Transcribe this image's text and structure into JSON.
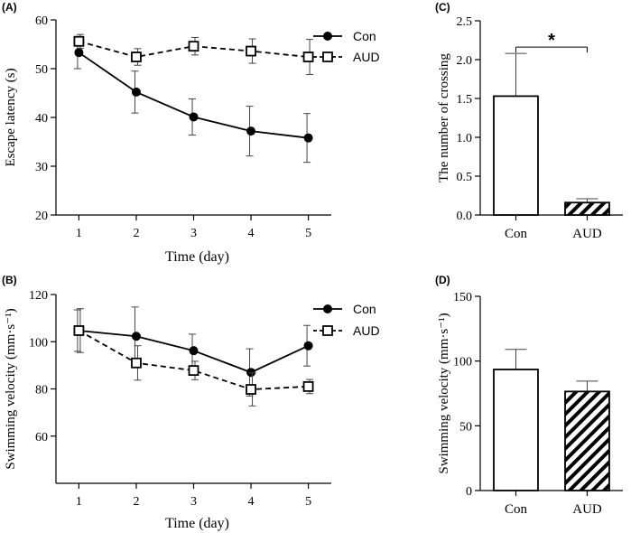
{
  "chart_data": [
    {
      "id": "A",
      "panel_label": "(A)",
      "type": "line",
      "xlabel": "Time (day)",
      "ylabel": "Escape latency (s)",
      "x": [
        1,
        2,
        3,
        4,
        5
      ],
      "xticks": [
        "1",
        "2",
        "3",
        "4",
        "5"
      ],
      "xlim": [
        0.6,
        5.4
      ],
      "ylim": [
        20,
        60
      ],
      "yticks": [
        20,
        30,
        40,
        50,
        60
      ],
      "series": [
        {
          "name": "Con",
          "marker": "filled-circle",
          "line": "solid",
          "values": [
            53.3,
            45.2,
            40.1,
            37.2,
            35.8
          ],
          "errors": [
            3.3,
            4.3,
            3.7,
            5.1,
            5.0
          ]
        },
        {
          "name": "AUD",
          "marker": "open-square",
          "line": "dashed",
          "values": [
            55.6,
            52.4,
            54.6,
            53.6,
            52.4
          ],
          "errors": [
            1.4,
            1.7,
            1.8,
            2.5,
            3.6
          ]
        }
      ],
      "legend": [
        "Con",
        "AUD"
      ]
    },
    {
      "id": "C",
      "panel_label": "(C)",
      "type": "bar",
      "ylabel": "The number of crossing",
      "categories": [
        "Con",
        "AUD"
      ],
      "values": [
        1.53,
        0.16
      ],
      "errors": [
        0.55,
        0.05
      ],
      "fills": [
        "white",
        "hatched"
      ],
      "ylim": [
        0,
        2.5
      ],
      "yticks": [
        "0.0",
        "0.5",
        "1.0",
        "1.5",
        "2.0",
        "2.5"
      ],
      "significance": "*"
    },
    {
      "id": "B",
      "panel_label": "(B)",
      "type": "line",
      "xlabel": "Time (day)",
      "ylabel": "Swimming velocity (mm·s⁻¹)",
      "x": [
        1,
        2,
        3,
        4,
        5
      ],
      "xticks": [
        "1",
        "2",
        "3",
        "4",
        "5"
      ],
      "xlim": [
        0.6,
        5.4
      ],
      "ylim": [
        40,
        120
      ],
      "yticks": [
        60,
        80,
        100,
        120
      ],
      "series": [
        {
          "name": "Con",
          "marker": "filled-circle",
          "line": "solid",
          "values": [
            104.7,
            102.3,
            96.2,
            87.0,
            98.3
          ],
          "errors": [
            8.8,
            12.4,
            7.0,
            10.0,
            8.6
          ]
        },
        {
          "name": "AUD",
          "marker": "open-square",
          "line": "dashed",
          "values": [
            104.7,
            91.0,
            87.8,
            79.8,
            81.0
          ],
          "errors": [
            9.3,
            7.3,
            3.9,
            7.0,
            3.0
          ]
        }
      ],
      "legend": [
        "Con",
        "AUD"
      ]
    },
    {
      "id": "D",
      "panel_label": "(D)",
      "type": "bar",
      "ylabel": "Swimming velocity (mm·s⁻¹)",
      "categories": [
        "Con",
        "AUD"
      ],
      "values": [
        93.5,
        76.5
      ],
      "errors": [
        15.5,
        8.0
      ],
      "fills": [
        "white",
        "hatched"
      ],
      "ylim": [
        0,
        150
      ],
      "yticks": [
        "0",
        "50",
        "100",
        "150"
      ]
    }
  ],
  "colors": {
    "ink": "#000000",
    "background": "#ffffff",
    "error_bar": "#444444"
  }
}
